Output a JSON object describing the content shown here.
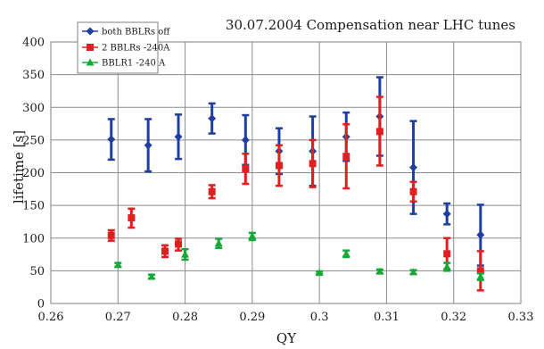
{
  "chart_data": {
    "type": "scatter",
    "title": "30.07.2004 Compensation near LHC tunes",
    "xlabel": "QY",
    "ylabel": "lifetime [s]",
    "xlim": [
      0.26,
      0.33
    ],
    "ylim": [
      0,
      400
    ],
    "xticks": [
      0.26,
      0.27,
      0.28,
      0.29,
      0.3,
      0.31,
      0.32,
      0.33
    ],
    "xtick_labels": [
      "0.26",
      "0.27",
      "0.28",
      "0.29",
      "0.3",
      "0.31",
      "0.32",
      "0.33"
    ],
    "yticks": [
      0,
      50,
      100,
      150,
      200,
      250,
      300,
      350,
      400
    ],
    "ytick_labels": [
      "0",
      "50",
      "100",
      "150",
      "200",
      "250",
      "300",
      "350",
      "400"
    ],
    "grid": true,
    "legend_position": "top-left",
    "series": [
      {
        "name": "both BBLRs off",
        "color": "#1f3fa0",
        "marker": "diamond",
        "points": [
          {
            "x": 0.269,
            "y": 251,
            "lo": 220,
            "hi": 282
          },
          {
            "x": 0.2745,
            "y": 242,
            "lo": 202,
            "hi": 282
          },
          {
            "x": 0.279,
            "y": 255,
            "lo": 221,
            "hi": 289
          },
          {
            "x": 0.284,
            "y": 283,
            "lo": 260,
            "hi": 306
          },
          {
            "x": 0.289,
            "y": 250,
            "lo": 212,
            "hi": 288
          },
          {
            "x": 0.294,
            "y": 233,
            "lo": 198,
            "hi": 268
          },
          {
            "x": 0.299,
            "y": 233,
            "lo": 180,
            "hi": 286
          },
          {
            "x": 0.304,
            "y": 255,
            "lo": 218,
            "hi": 292
          },
          {
            "x": 0.309,
            "y": 286,
            "lo": 226,
            "hi": 346
          },
          {
            "x": 0.314,
            "y": 208,
            "lo": 137,
            "hi": 279
          },
          {
            "x": 0.319,
            "y": 137,
            "lo": 121,
            "hi": 153
          },
          {
            "x": 0.324,
            "y": 105,
            "lo": 58,
            "hi": 151
          }
        ]
      },
      {
        "name": "2 BBLRs -240A",
        "color": "#e02020",
        "marker": "square",
        "points": [
          {
            "x": 0.269,
            "y": 104,
            "lo": 96,
            "hi": 112
          },
          {
            "x": 0.272,
            "y": 131,
            "lo": 116,
            "hi": 145
          },
          {
            "x": 0.277,
            "y": 80,
            "lo": 71,
            "hi": 89
          },
          {
            "x": 0.279,
            "y": 91,
            "lo": 81,
            "hi": 99
          },
          {
            "x": 0.284,
            "y": 171,
            "lo": 161,
            "hi": 181
          },
          {
            "x": 0.289,
            "y": 206,
            "lo": 183,
            "hi": 229
          },
          {
            "x": 0.294,
            "y": 211,
            "lo": 180,
            "hi": 242
          },
          {
            "x": 0.299,
            "y": 214,
            "lo": 178,
            "hi": 250
          },
          {
            "x": 0.304,
            "y": 225,
            "lo": 176,
            "hi": 274
          },
          {
            "x": 0.309,
            "y": 263,
            "lo": 211,
            "hi": 316
          },
          {
            "x": 0.314,
            "y": 171,
            "lo": 156,
            "hi": 186
          },
          {
            "x": 0.319,
            "y": 76,
            "lo": 52,
            "hi": 100
          },
          {
            "x": 0.324,
            "y": 50,
            "lo": 20,
            "hi": 80
          }
        ]
      },
      {
        "name": "BBLR1 -240 A",
        "color": "#18a838",
        "marker": "triangle",
        "points": [
          {
            "x": 0.27,
            "y": 59,
            "lo": 56,
            "hi": 62
          },
          {
            "x": 0.275,
            "y": 41,
            "lo": 38,
            "hi": 44
          },
          {
            "x": 0.28,
            "y": 75,
            "lo": 67,
            "hi": 83
          },
          {
            "x": 0.285,
            "y": 92,
            "lo": 85,
            "hi": 99
          },
          {
            "x": 0.29,
            "y": 103,
            "lo": 97,
            "hi": 108
          },
          {
            "x": 0.3,
            "y": 47,
            "lo": 45,
            "hi": 49
          },
          {
            "x": 0.304,
            "y": 76,
            "lo": 71,
            "hi": 81
          },
          {
            "x": 0.309,
            "y": 49,
            "lo": 46,
            "hi": 52
          },
          {
            "x": 0.314,
            "y": 48,
            "lo": 45,
            "hi": 51
          },
          {
            "x": 0.319,
            "y": 56,
            "lo": 50,
            "hi": 62
          },
          {
            "x": 0.324,
            "y": 41,
            "lo": 36,
            "hi": 46
          }
        ]
      }
    ]
  }
}
